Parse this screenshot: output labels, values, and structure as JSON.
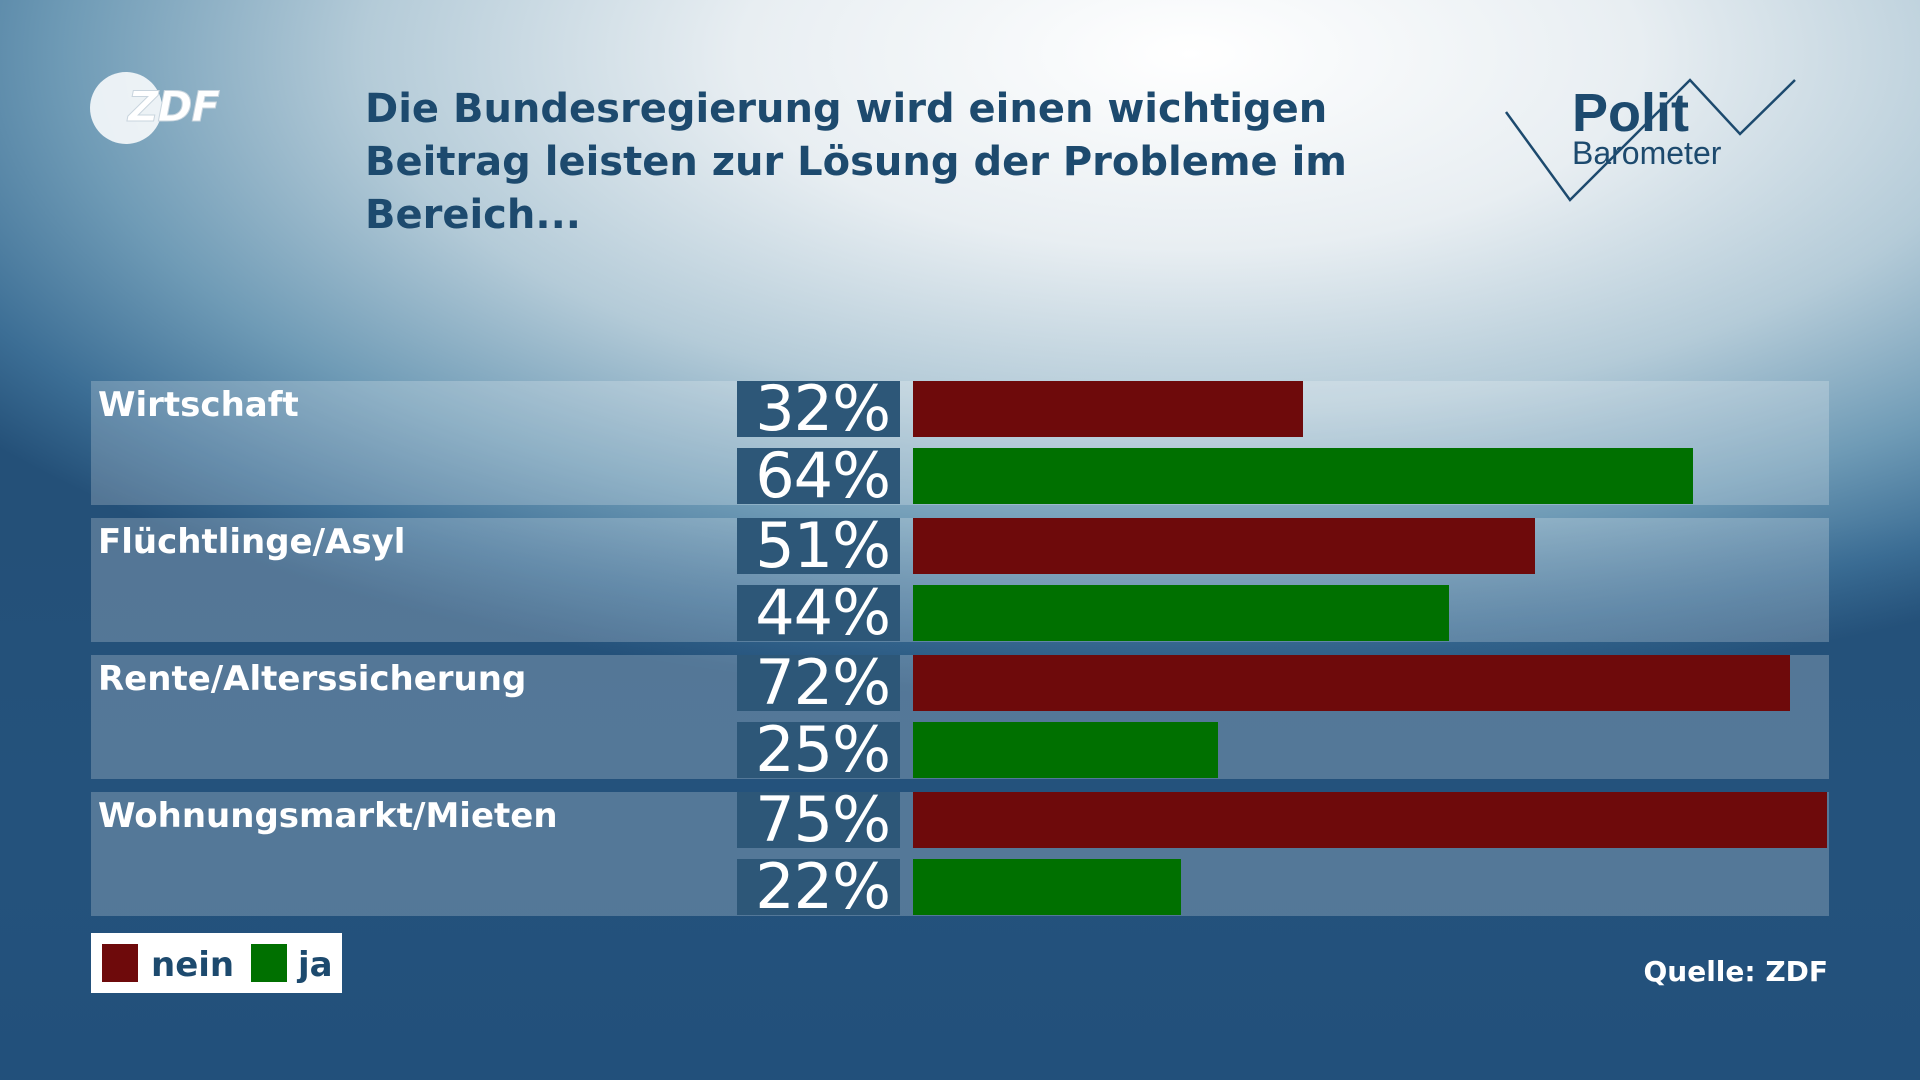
{
  "brand": {
    "logo_text": "ZDF",
    "polit_text": "Polit",
    "barometer_text": "Barometer"
  },
  "title": "Die Bundesregierung wird einen wichtigen Beitrag leisten zur Lösung der Probleme im Bereich...",
  "source": "Quelle: ZDF",
  "colors": {
    "nein": "#6e0a0b",
    "ja": "#007000",
    "title": "#1d4a6e"
  },
  "chart_data": {
    "type": "bar",
    "orientation": "horizontal",
    "title": "Die Bundesregierung wird einen wichtigen Beitrag leisten zur Lösung der Probleme im Bereich...",
    "categories": [
      "Wirtschaft",
      "Flüchtlinge/Asyl",
      "Rente/Alterssicherung",
      "Wohnungsmarkt/Mieten"
    ],
    "series": [
      {
        "name": "nein",
        "color": "#6e0a0b",
        "values": [
          32,
          51,
          72,
          75
        ],
        "labels": [
          "32%",
          "51%",
          "72%",
          "75%"
        ]
      },
      {
        "name": "ja",
        "color": "#007000",
        "values": [
          64,
          44,
          25,
          22
        ],
        "labels": [
          "64%",
          "44%",
          "25%",
          "22%"
        ]
      }
    ],
    "unit": "%",
    "xlim": [
      0,
      75
    ],
    "grid": false,
    "legend": "bottom-left"
  }
}
